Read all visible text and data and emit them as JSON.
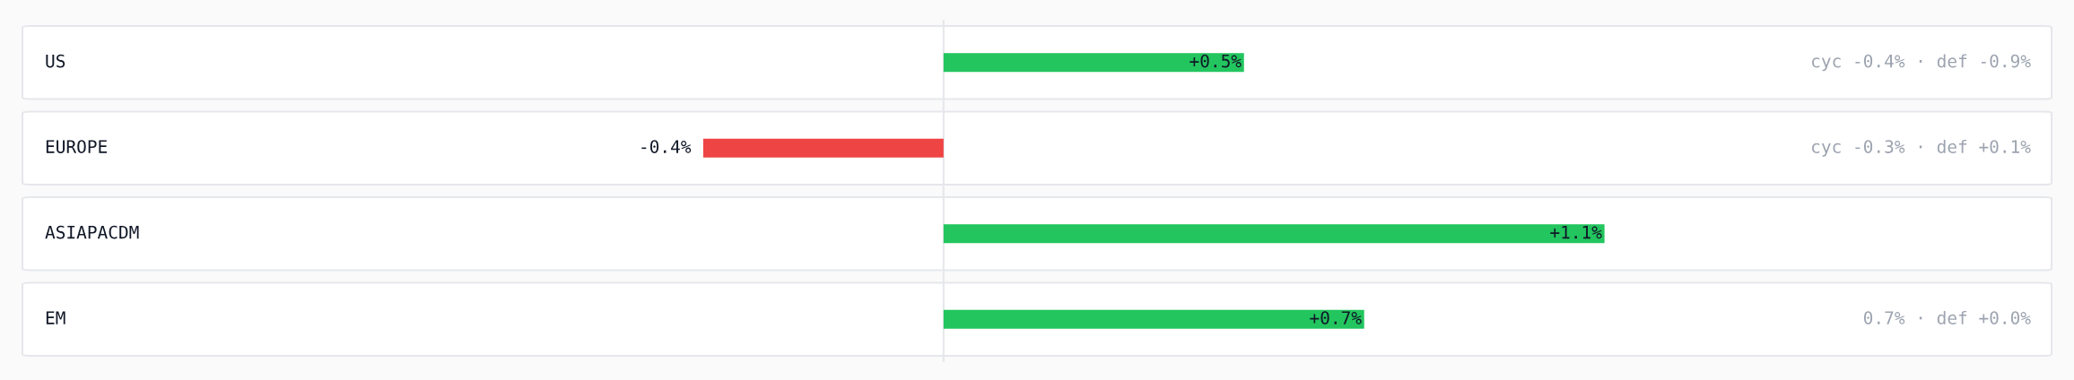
{
  "chart_data": {
    "type": "bar",
    "orientation": "horizontal",
    "categories": [
      "US",
      "EUROPE",
      "ASIAPACDM",
      "EM"
    ],
    "values": [
      0.5,
      -0.4,
      1.1,
      0.7
    ],
    "colors": [
      "#22c55e",
      "#ef4444",
      "#22c55e",
      "#22c55e"
    ],
    "value_labels": [
      "+0.5%",
      "-0.4%",
      "+1.1%",
      "+0.7%"
    ],
    "ref_lines": [
      {
        "axis": "x",
        "value": 0,
        "color": "#e5e7eb"
      }
    ],
    "annotations": [
      "cyc -0.4% · def -0.9%",
      "cyc -0.3% · def +0.1%",
      "0.7% · def +0.0%"
    ]
  }
}
